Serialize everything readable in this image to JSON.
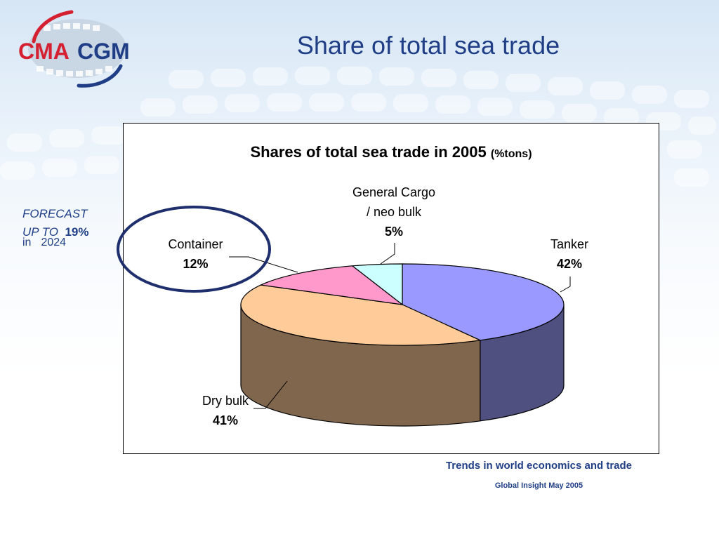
{
  "slide": {
    "title": "Share of total sea trade",
    "logo_text_left": "CMA",
    "logo_text_right": "CGM"
  },
  "forecast": {
    "line1": "FORECAST",
    "line2_prefix": "UP TO",
    "line2_value": "19%",
    "line3_prefix": "in",
    "line3_year": "2024"
  },
  "colors": {
    "title_blue": "#1f3e86",
    "tanker": "#9999ff",
    "tanker_side": "#4f4f80",
    "dry_bulk": "#ffcc99",
    "dry_bulk_side": "#80664d",
    "container": "#ff99cc",
    "general_cargo": "#ccffff",
    "logo_red": "#d42030",
    "circle": "#1f2f6e"
  },
  "chart_data": {
    "type": "pie",
    "title": "Shares of total sea trade in 2005",
    "title_unit": "(%tons)",
    "slices": [
      {
        "name": "Tanker",
        "value": 42,
        "label": "42%"
      },
      {
        "name": "Dry bulk",
        "value": 41,
        "label": "41%"
      },
      {
        "name": "Container",
        "value": 12,
        "label": "12%"
      },
      {
        "name": "General Cargo / neo bulk",
        "line1": "General Cargo",
        "line2": "/ neo bulk",
        "value": 5,
        "label": "5%"
      }
    ],
    "three_d": true
  },
  "source": {
    "line1": "Trends in world economics and trade",
    "line2": "Global Insight May 2005"
  }
}
